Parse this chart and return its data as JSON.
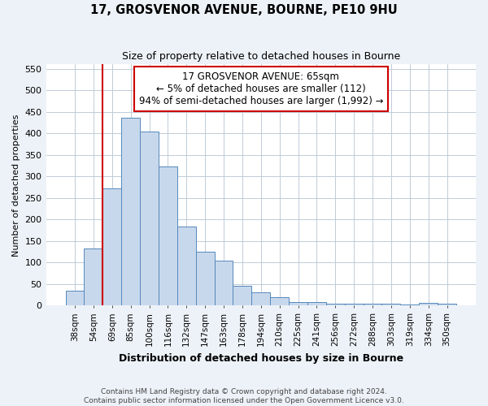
{
  "title": "17, GROSVENOR AVENUE, BOURNE, PE10 9HU",
  "subtitle": "Size of property relative to detached houses in Bourne",
  "xlabel": "Distribution of detached houses by size in Bourne",
  "ylabel": "Number of detached properties",
  "categories": [
    "38sqm",
    "54sqm",
    "69sqm",
    "85sqm",
    "100sqm",
    "116sqm",
    "132sqm",
    "147sqm",
    "163sqm",
    "178sqm",
    "194sqm",
    "210sqm",
    "225sqm",
    "241sqm",
    "256sqm",
    "272sqm",
    "288sqm",
    "303sqm",
    "319sqm",
    "334sqm",
    "350sqm"
  ],
  "values": [
    35,
    133,
    272,
    436,
    405,
    323,
    184,
    126,
    105,
    46,
    30,
    20,
    8,
    9,
    5,
    4,
    5,
    4,
    3,
    7,
    5
  ],
  "bar_color": "#c8d8ec",
  "bar_edge_color": "#5588bb",
  "property_line_x": 2.0,
  "property_line_color": "#cc0000",
  "annotation_text": "17 GROSVENOR AVENUE: 65sqm\n← 5% of detached houses are smaller (112)\n94% of semi-detached houses are larger (1,992) →",
  "annotation_box_color": "#cc0000",
  "ylim": [
    0,
    560
  ],
  "yticks": [
    0,
    50,
    100,
    150,
    200,
    250,
    300,
    350,
    400,
    450,
    500,
    550
  ],
  "footnote": "Contains HM Land Registry data © Crown copyright and database right 2024.\nContains public sector information licensed under the Open Government Licence v3.0.",
  "bg_color": "#edf2f8",
  "plot_bg_color": "#ffffff",
  "grid_color": "#c0ccd8"
}
